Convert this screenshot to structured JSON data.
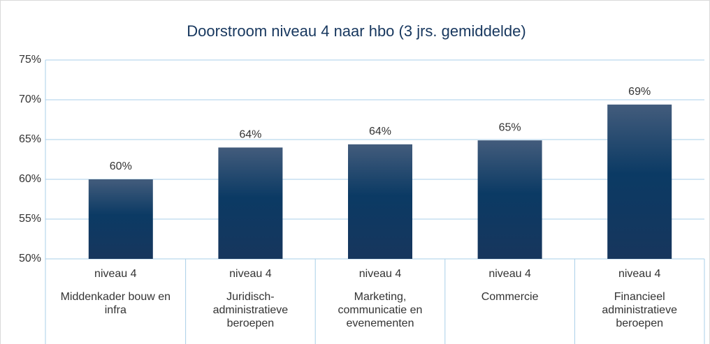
{
  "chart_data": {
    "type": "bar",
    "title": "Doorstroom niveau  4 naar hbo (3 jrs. gemiddelde)",
    "categories": [
      [
        "niveau 4",
        "Middenkader bouw en infra"
      ],
      [
        "niveau 4",
        "Juridisch-administratieve beroepen"
      ],
      [
        "niveau 4",
        "Marketing, communicatie en evenementen"
      ],
      [
        "niveau 4",
        "Commercie"
      ],
      [
        "niveau 4",
        "Financieel administratieve beroepen"
      ]
    ],
    "values": [
      60,
      64,
      64.4,
      64.9,
      69.4
    ],
    "value_labels": [
      "60%",
      "64%",
      "64%",
      "65%",
      "69%"
    ],
    "color": "#17375e",
    "ylim": [
      50,
      75
    ],
    "yticks": [
      {
        "value": 50,
        "label": "50%"
      },
      {
        "value": 55,
        "label": "55%"
      },
      {
        "value": 60,
        "label": "60%"
      },
      {
        "value": 65,
        "label": "65%"
      },
      {
        "value": 70,
        "label": "70%"
      },
      {
        "value": 75,
        "label": "75%"
      }
    ],
    "grid": true
  }
}
